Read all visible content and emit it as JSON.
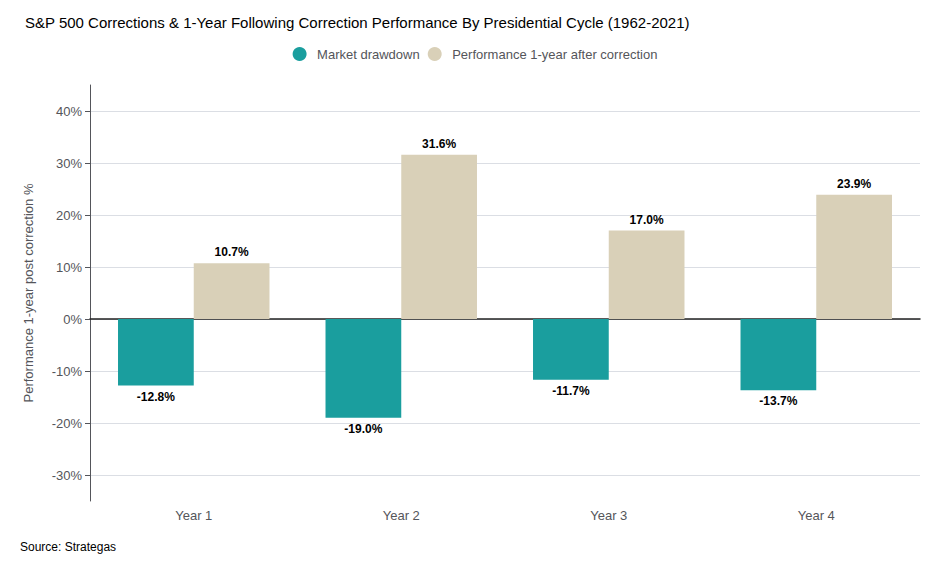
{
  "chart_data": {
    "type": "bar",
    "title": "S&P 500 Corrections & 1-Year Following Correction Performance By Presidential Cycle (1962-2021)",
    "categories": [
      "Year 1",
      "Year 2",
      "Year 3",
      "Year 4"
    ],
    "series": [
      {
        "name": "Market drawdown",
        "color": "#1a9e9e",
        "values": [
          -12.8,
          -19.0,
          -11.7,
          -13.7
        ],
        "value_labels": [
          "-12.8%",
          "-19.0%",
          "-11.7%",
          "-13.7%"
        ]
      },
      {
        "name": "Performance 1-year after correction",
        "color": "#d9d0b8",
        "values": [
          10.7,
          31.6,
          17.0,
          23.9
        ],
        "value_labels": [
          "10.7%",
          "31.6%",
          "17.0%",
          "23.9%"
        ]
      }
    ],
    "ylabel": "Performance 1-year post correction %",
    "ylim": [
      -35,
      45
    ],
    "yticks": [
      {
        "value": -30,
        "label": "-30%"
      },
      {
        "value": -20,
        "label": "-20%"
      },
      {
        "value": -10,
        "label": "-10%"
      },
      {
        "value": 0,
        "label": "0%"
      },
      {
        "value": 10,
        "label": "10%"
      },
      {
        "value": 20,
        "label": "20%"
      },
      {
        "value": 30,
        "label": "30%"
      },
      {
        "value": 40,
        "label": "40%"
      }
    ],
    "grid": true,
    "legend": "top",
    "data_labels": true,
    "annotations": [
      "Source: Strategas"
    ]
  }
}
